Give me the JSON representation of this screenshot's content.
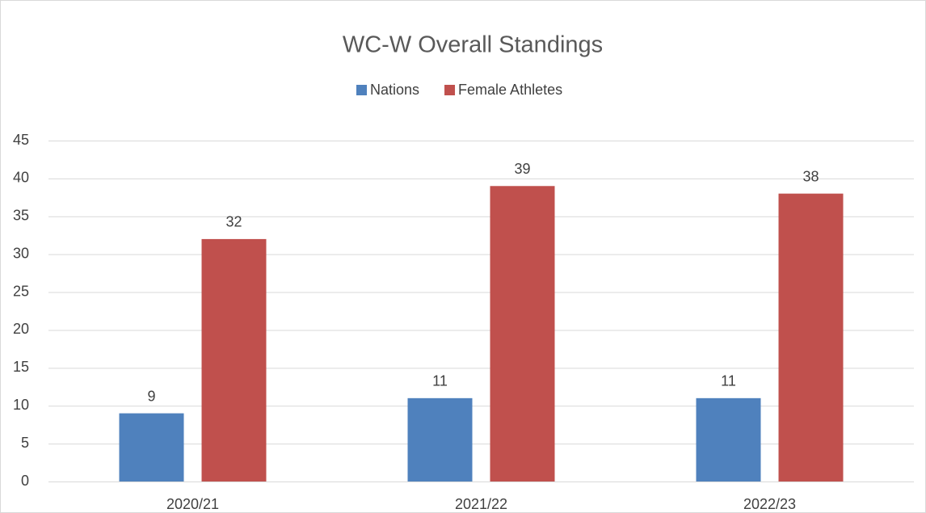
{
  "chart_data": {
    "type": "bar",
    "title": "WC-W Overall Standings",
    "categories": [
      "2020/21",
      "2021/22",
      "2022/23"
    ],
    "series": [
      {
        "name": "Nations",
        "color": "#4f81bd",
        "values": [
          9,
          11,
          11
        ]
      },
      {
        "name": "Female Athletes",
        "color": "#c0504d",
        "values": [
          32,
          39,
          38
        ]
      }
    ],
    "ylim": [
      0,
      45
    ],
    "yticks": [
      0,
      5,
      10,
      15,
      20,
      25,
      30,
      35,
      40,
      45
    ],
    "grid": true,
    "legend": "top"
  }
}
